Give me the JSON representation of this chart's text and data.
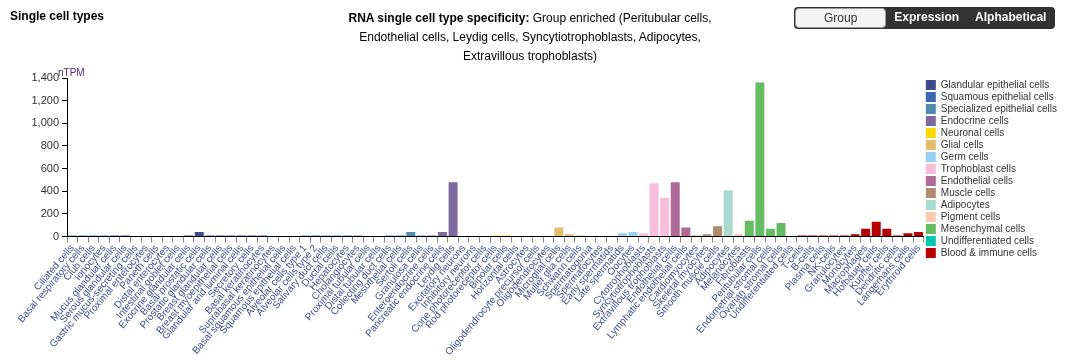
{
  "chart_data": {
    "type": "bar",
    "title": "Single cell types",
    "subtitle": "RNA single cell type specificity: Group enriched (Peritubular cells, Endothelial cells, Leydig cells, Syncytiotrophoblasts, Adipocytes, Extravillous trophoblasts)",
    "ylabel": "nTPM",
    "annotations": [
      "Group",
      "Expression",
      "Alphabetical"
    ],
    "categories": [
      "Ciliated cells",
      "Basal respiratory cells",
      "Club cells",
      "Ionocytes",
      "Mucus glandular cells",
      "Serous glandular cells",
      "Gastric mucus-secreting cells",
      "Proximal enterocytes",
      "Paneth cells",
      "Distal enterocytes",
      "Intestinal goblet cells",
      "Exocrine glandular cells",
      "Basal prostatic cells",
      "Prostatic glandular cells",
      "Breast glandular cells",
      "Breast myoepithelial cells",
      "Glandular and luminal cells",
      "Secretory cells",
      "Basal keratinocytes",
      "Suprabasal keratinocytes",
      "Basal squamous epithelial cells",
      "Squamous epithelial cells",
      "Alveolar cells type 1",
      "Alveolar cells type 2",
      "Salivary duct cells",
      "Ductal cells",
      "Hepatocytes",
      "Cholangiocytes",
      "Proximal tubular cells",
      "Distal tubular cells",
      "Collecting duct cells",
      "Mesothelial cells",
      "Sertoli cells",
      "Granulosa cells",
      "Enteroendocrine cells",
      "Pancreatic endocrine cells",
      "Leydig cells",
      "Excitatory neurons",
      "Inhibitory neurons",
      "Cone photoreceptor cells",
      "Rod photoreceptor cells",
      "Bipolar cells",
      "Horizontal cells",
      "Astrocytes",
      "Oligodendrocyte precursor cells",
      "Oligodendrocytes",
      "Microglial cells",
      "Muller glia cells",
      "Schwann cells",
      "Spermatogonia",
      "Spermatocytes",
      "Early spermatids",
      "Late spermatids",
      "Oocytes",
      "Cytotrophoblasts",
      "Syncytiotrophoblasts",
      "Extravillous trophoblasts",
      "Endothelial cells",
      "Lymphatic endothelial cells",
      "Cardiomyocytes",
      "Skeletal myocytes",
      "Smooth muscle cells",
      "Adipocytes",
      "Melanocytes",
      "Fibroblasts",
      "Peritubular cells",
      "Endometrial stromal cells",
      "Ovarian stromal cells",
      "Undifferentiated cells",
      "T-cells",
      "B-cells",
      "Plasma cells",
      "NK-cells",
      "Granulocytes",
      "Monocytes",
      "Macrophages",
      "Hofbauer cells",
      "Kupffer cells",
      "Dendritic cells",
      "Langerhans cells",
      "Erythroid cells"
    ],
    "series": [
      {
        "name": "Glandular epithelial cells",
        "color": "#3d4b8b",
        "values": [
          null,
          null,
          null,
          null,
          10,
          10,
          0,
          0,
          0,
          0,
          0,
          10,
          40,
          10,
          10,
          10,
          10,
          10,
          null,
          null,
          null,
          null,
          null,
          null,
          null,
          null,
          null,
          null,
          null,
          null,
          null,
          null,
          null,
          null,
          null,
          null,
          null,
          null,
          null,
          null,
          null,
          null,
          null,
          null,
          null,
          null,
          null,
          null,
          null,
          null,
          null,
          null,
          null,
          null,
          null,
          null,
          null,
          null,
          null,
          null,
          null,
          null,
          null,
          null,
          null,
          null,
          null,
          null,
          null,
          null,
          null,
          null,
          null,
          null,
          null,
          null,
          null,
          null,
          null,
          null,
          null
        ]
      },
      {
        "name": "Squamous epithelial cells",
        "color": "#3d67b0",
        "values": [
          null,
          null,
          null,
          null,
          null,
          null,
          null,
          null,
          null,
          null,
          null,
          null,
          null,
          null,
          null,
          null,
          null,
          null,
          10,
          0,
          0,
          0,
          null,
          null,
          null,
          null,
          null,
          null,
          null,
          null,
          null,
          null,
          null,
          null,
          null,
          null,
          null,
          null,
          null,
          null,
          null,
          null,
          null,
          null,
          null,
          null,
          null,
          null,
          null,
          null,
          null,
          null,
          null,
          null,
          null,
          null,
          null,
          null,
          null,
          null,
          null,
          null,
          null,
          null,
          null,
          null,
          null,
          null,
          null,
          null,
          null,
          null,
          null,
          null,
          null,
          null,
          null,
          null,
          null,
          null,
          null
        ]
      },
      {
        "name": "Specialized epithelial cells",
        "color": "#4f8bab",
        "values": [
          10,
          10,
          10,
          10,
          null,
          null,
          null,
          null,
          null,
          null,
          null,
          null,
          null,
          null,
          null,
          null,
          null,
          null,
          null,
          null,
          null,
          null,
          10,
          10,
          10,
          10,
          10,
          10,
          0,
          0,
          10,
          10,
          40,
          10,
          null,
          null,
          null,
          null,
          null,
          null,
          null,
          null,
          null,
          null,
          null,
          null,
          null,
          null,
          null,
          null,
          null,
          null,
          null,
          null,
          null,
          null,
          null,
          null,
          null,
          null,
          null,
          null,
          null,
          null,
          null,
          null,
          null,
          null,
          null,
          null,
          null,
          null,
          null,
          null,
          null,
          null,
          null,
          null,
          null,
          null,
          null
        ]
      },
      {
        "name": "Endocrine cells",
        "color": "#7e6aa0",
        "values": [
          null,
          null,
          null,
          null,
          null,
          null,
          null,
          null,
          null,
          null,
          null,
          null,
          null,
          null,
          null,
          null,
          null,
          null,
          null,
          null,
          null,
          null,
          null,
          null,
          null,
          null,
          null,
          null,
          null,
          null,
          null,
          null,
          null,
          null,
          10,
          40,
          480,
          null,
          null,
          null,
          null,
          null,
          null,
          null,
          null,
          null,
          null,
          null,
          null,
          null,
          null,
          null,
          null,
          null,
          null,
          null,
          null,
          null,
          null,
          null,
          null,
          null,
          null,
          null,
          null,
          null,
          null,
          null,
          null,
          null,
          null,
          null,
          null,
          null,
          null,
          null,
          null,
          null,
          null,
          null,
          null
        ]
      },
      {
        "name": "Neuronal cells",
        "color": "#ffd700",
        "values": [
          null,
          null,
          null,
          null,
          null,
          null,
          null,
          null,
          null,
          null,
          null,
          null,
          null,
          null,
          null,
          null,
          null,
          null,
          null,
          null,
          null,
          null,
          null,
          null,
          null,
          null,
          null,
          null,
          null,
          null,
          null,
          null,
          null,
          null,
          null,
          null,
          null,
          0,
          0,
          0,
          10,
          10,
          0,
          null,
          null,
          null,
          null,
          null,
          null,
          null,
          null,
          null,
          null,
          null,
          null,
          null,
          null,
          null,
          null,
          null,
          null,
          null,
          null,
          null,
          null,
          null,
          null,
          null,
          null,
          null,
          null,
          null,
          null,
          null,
          null,
          null,
          null,
          null,
          null,
          null,
          null
        ]
      },
      {
        "name": "Glial cells",
        "color": "#e2bd6b",
        "values": [
          null,
          null,
          null,
          null,
          null,
          null,
          null,
          null,
          null,
          null,
          null,
          null,
          null,
          null,
          null,
          null,
          null,
          null,
          null,
          null,
          null,
          null,
          null,
          null,
          null,
          null,
          null,
          null,
          null,
          null,
          null,
          null,
          null,
          null,
          null,
          null,
          null,
          null,
          null,
          null,
          null,
          null,
          null,
          0,
          0,
          0,
          80,
          20,
          10,
          null,
          null,
          null,
          null,
          null,
          null,
          null,
          null,
          null,
          null,
          null,
          null,
          null,
          null,
          null,
          null,
          null,
          null,
          null,
          null,
          null,
          null,
          null,
          null,
          null,
          null,
          null,
          null,
          null,
          null,
          null,
          null
        ]
      },
      {
        "name": "Germ cells",
        "color": "#95d0f3",
        "values": [
          null,
          null,
          null,
          null,
          null,
          null,
          null,
          null,
          null,
          null,
          null,
          null,
          null,
          null,
          null,
          null,
          null,
          null,
          null,
          null,
          null,
          null,
          null,
          null,
          null,
          null,
          null,
          null,
          null,
          null,
          null,
          null,
          null,
          null,
          null,
          null,
          null,
          null,
          null,
          null,
          null,
          null,
          null,
          null,
          null,
          null,
          null,
          null,
          null,
          0,
          0,
          0,
          30,
          40,
          null,
          null,
          null,
          null,
          null,
          null,
          null,
          null,
          null,
          null,
          null,
          null,
          null,
          null,
          null,
          null,
          null,
          null,
          null,
          null,
          null,
          null,
          null,
          null,
          null,
          null,
          null
        ]
      },
      {
        "name": "Trophoblast cells",
        "color": "#f7bdd9",
        "values": [
          null,
          null,
          null,
          null,
          null,
          null,
          null,
          null,
          null,
          null,
          null,
          null,
          null,
          null,
          null,
          null,
          null,
          null,
          null,
          null,
          null,
          null,
          null,
          null,
          null,
          null,
          null,
          null,
          null,
          null,
          null,
          null,
          null,
          null,
          null,
          null,
          null,
          null,
          null,
          null,
          null,
          null,
          null,
          null,
          null,
          null,
          null,
          null,
          null,
          null,
          null,
          null,
          null,
          null,
          30,
          470,
          340,
          null,
          null,
          null,
          null,
          null,
          null,
          null,
          null,
          null,
          null,
          null,
          null,
          null,
          null,
          null,
          null,
          null,
          null,
          null,
          null,
          null,
          null,
          null,
          null
        ]
      },
      {
        "name": "Endothelial cells",
        "color": "#b06a96",
        "values": [
          null,
          null,
          null,
          null,
          null,
          null,
          null,
          null,
          null,
          null,
          null,
          null,
          null,
          null,
          null,
          null,
          null,
          null,
          null,
          null,
          null,
          null,
          null,
          null,
          null,
          null,
          null,
          null,
          null,
          null,
          null,
          null,
          null,
          null,
          null,
          null,
          null,
          null,
          null,
          null,
          null,
          null,
          null,
          null,
          null,
          null,
          null,
          null,
          null,
          null,
          null,
          null,
          null,
          null,
          null,
          null,
          null,
          480,
          80,
          null,
          null,
          null,
          null,
          null,
          null,
          null,
          null,
          null,
          null,
          null,
          null,
          null,
          null,
          null,
          null,
          null,
          null,
          null,
          null,
          null,
          null
        ]
      },
      {
        "name": "Muscle cells",
        "color": "#b08b6e",
        "values": [
          null,
          null,
          null,
          null,
          null,
          null,
          null,
          null,
          null,
          null,
          null,
          null,
          null,
          null,
          null,
          null,
          null,
          null,
          null,
          null,
          null,
          null,
          null,
          null,
          null,
          null,
          null,
          null,
          null,
          null,
          null,
          null,
          null,
          null,
          null,
          null,
          null,
          null,
          null,
          null,
          null,
          null,
          null,
          null,
          null,
          null,
          null,
          null,
          null,
          null,
          null,
          null,
          null,
          null,
          null,
          null,
          null,
          null,
          null,
          10,
          20,
          90,
          null,
          null,
          null,
          null,
          null,
          null,
          null,
          null,
          null,
          null,
          null,
          null,
          null,
          null,
          null,
          null,
          null,
          null,
          null
        ]
      },
      {
        "name": "Adipocytes",
        "color": "#a8dbce",
        "values": [
          null,
          null,
          null,
          null,
          null,
          null,
          null,
          null,
          null,
          null,
          null,
          null,
          null,
          null,
          null,
          null,
          null,
          null,
          null,
          null,
          null,
          null,
          null,
          null,
          null,
          null,
          null,
          null,
          null,
          null,
          null,
          null,
          null,
          null,
          null,
          null,
          null,
          null,
          null,
          null,
          null,
          null,
          null,
          null,
          null,
          null,
          null,
          null,
          null,
          null,
          null,
          null,
          null,
          null,
          null,
          null,
          null,
          null,
          null,
          null,
          null,
          null,
          410,
          null,
          null,
          null,
          null,
          null,
          null,
          null,
          null,
          null,
          null,
          null,
          null,
          null,
          null,
          null,
          null,
          null,
          null
        ]
      },
      {
        "name": "Pigment cells",
        "color": "#fccab1",
        "values": [
          null,
          null,
          null,
          null,
          null,
          null,
          null,
          null,
          null,
          null,
          null,
          null,
          null,
          null,
          null,
          null,
          null,
          null,
          null,
          null,
          null,
          null,
          null,
          null,
          null,
          null,
          null,
          null,
          null,
          null,
          null,
          null,
          null,
          null,
          null,
          null,
          null,
          null,
          null,
          null,
          null,
          null,
          null,
          null,
          null,
          null,
          null,
          null,
          null,
          null,
          null,
          null,
          null,
          null,
          null,
          null,
          null,
          null,
          null,
          null,
          null,
          null,
          null,
          20,
          null,
          null,
          null,
          null,
          null,
          null,
          null,
          null,
          null,
          null,
          null,
          null,
          null,
          null,
          null,
          null,
          null
        ]
      },
      {
        "name": "Mesenchymal cells",
        "color": "#66bc62",
        "values": [
          null,
          null,
          null,
          null,
          null,
          null,
          null,
          null,
          null,
          null,
          null,
          null,
          null,
          null,
          null,
          null,
          null,
          null,
          null,
          null,
          null,
          null,
          null,
          null,
          null,
          null,
          null,
          null,
          null,
          null,
          null,
          null,
          null,
          null,
          null,
          null,
          null,
          null,
          null,
          null,
          null,
          null,
          null,
          null,
          null,
          null,
          null,
          null,
          null,
          null,
          null,
          null,
          null,
          null,
          null,
          null,
          null,
          null,
          null,
          null,
          null,
          null,
          null,
          null,
          140,
          1360,
          70,
          120,
          null,
          null,
          null,
          null,
          null,
          null,
          null,
          null,
          null,
          null,
          null,
          null,
          null
        ]
      },
      {
        "name": "Undifferentiated cells",
        "color": "#00c6b2",
        "values": [
          null,
          null,
          null,
          null,
          null,
          null,
          null,
          null,
          null,
          null,
          null,
          null,
          null,
          null,
          null,
          null,
          null,
          null,
          null,
          null,
          null,
          null,
          null,
          null,
          null,
          null,
          null,
          null,
          null,
          null,
          null,
          null,
          null,
          null,
          null,
          null,
          null,
          null,
          null,
          null,
          null,
          null,
          null,
          null,
          null,
          null,
          null,
          null,
          null,
          null,
          null,
          null,
          null,
          null,
          null,
          null,
          null,
          null,
          null,
          null,
          null,
          null,
          null,
          null,
          null,
          null,
          null,
          null,
          0,
          null,
          null,
          null,
          null,
          null,
          null,
          null,
          null,
          null,
          null,
          null,
          null
        ]
      },
      {
        "name": "Blood & immune cells",
        "color": "#b40000",
        "values": [
          null,
          null,
          null,
          null,
          null,
          null,
          null,
          null,
          null,
          null,
          null,
          null,
          null,
          null,
          null,
          null,
          null,
          null,
          null,
          null,
          null,
          null,
          null,
          null,
          null,
          null,
          null,
          null,
          null,
          null,
          null,
          null,
          null,
          null,
          null,
          null,
          null,
          null,
          null,
          null,
          null,
          null,
          null,
          null,
          null,
          null,
          null,
          null,
          null,
          null,
          null,
          null,
          null,
          null,
          null,
          null,
          null,
          null,
          null,
          null,
          null,
          null,
          null,
          null,
          null,
          null,
          null,
          null,
          null,
          10,
          10,
          10,
          10,
          10,
          20,
          70,
          130,
          70,
          10,
          30,
          40
        ]
      }
    ],
    "ylim": [
      0,
      1400
    ],
    "yticks": [
      0,
      200,
      400,
      600,
      800,
      {
        "value": 1000,
        "label": "1,000"
      },
      {
        "value": 1200,
        "label": "1,200"
      },
      {
        "value": 1400,
        "label": "1,400"
      }
    ],
    "grid": false,
    "legend": "right"
  }
}
